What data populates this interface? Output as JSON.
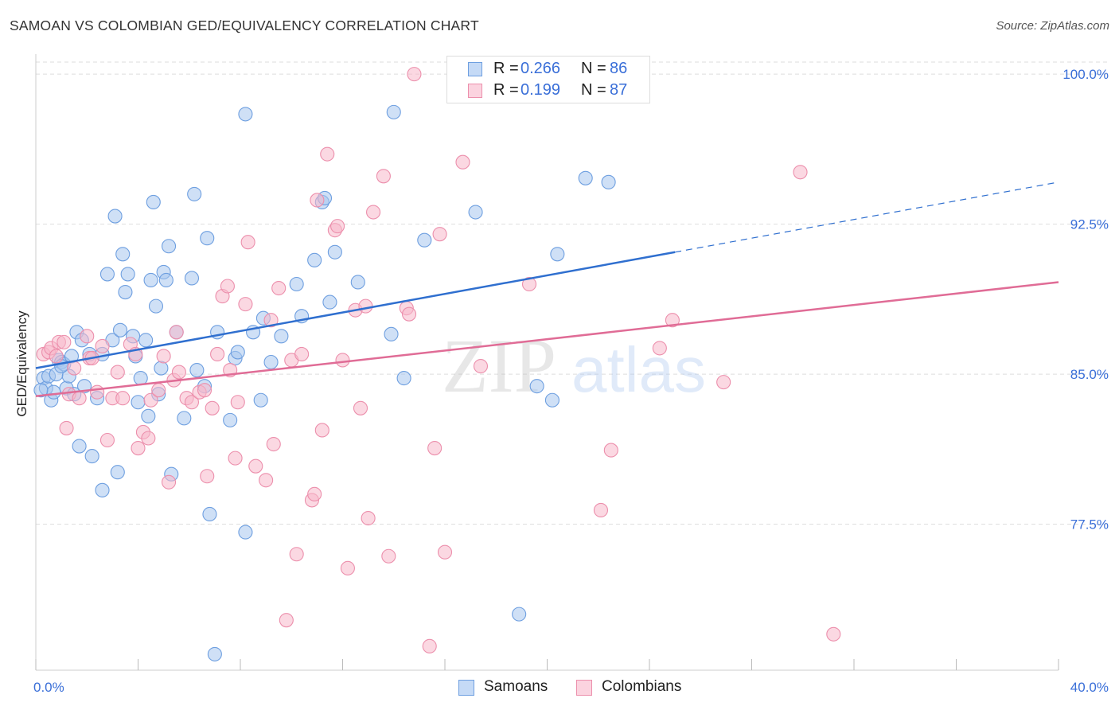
{
  "title": "SAMOAN VS COLOMBIAN GED/EQUIVALENCY CORRELATION CHART",
  "source": "Source: ZipAtlas.com",
  "watermark": {
    "zip": "ZIP",
    "atlas": "atlas"
  },
  "legend": {
    "samoans": {
      "r_label": "R =",
      "r_value": "0.266",
      "n_label": "N =",
      "n_value": "86"
    },
    "colombians": {
      "r_label": "R =",
      "r_value": "0.199",
      "n_label": "N =",
      "n_value": "87"
    }
  },
  "bottom_legend": {
    "samoans": "Samoans",
    "colombians": "Colombians"
  },
  "colors": {
    "samoans_fill": "#a8c6ef",
    "samoans_stroke": "#6e9fe0",
    "samoans_line": "#2f6fcf",
    "colombians_fill": "#f7b8cb",
    "colombians_stroke": "#ec8fac",
    "colombians_line": "#e06c96",
    "tick_label": "#3a6fd8",
    "grid": "#dddddd"
  },
  "chart_data": {
    "type": "scatter",
    "title": "SAMOAN VS COLOMBIAN GED/EQUIVALENCY CORRELATION CHART",
    "xlabel": "",
    "ylabel": "GED/Equivalency",
    "xlim": [
      0,
      40
    ],
    "ylim": [
      70.2,
      101.0
    ],
    "x_tick_labels": [
      {
        "value": 0,
        "label": "0.0%"
      },
      {
        "value": 40,
        "label": "40.0%"
      }
    ],
    "y_tick_labels": [
      {
        "value": 100,
        "label": "100.0%"
      },
      {
        "value": 92.5,
        "label": "92.5%"
      },
      {
        "value": 85,
        "label": "85.0%"
      },
      {
        "value": 77.5,
        "label": "77.5%"
      }
    ],
    "grid": true,
    "series": [
      {
        "name": "Samoans",
        "r": 0.266,
        "n": 86,
        "trend": {
          "x0": 0,
          "y0": 85.3,
          "x1": 25,
          "y1": 91.1,
          "dash_to_x": 40,
          "dash_to_y": 94.6
        },
        "points": [
          [
            0.3,
            84.8
          ],
          [
            0.4,
            84.3
          ],
          [
            0.5,
            84.9
          ],
          [
            0.6,
            83.7
          ],
          [
            0.7,
            84.1
          ],
          [
            0.8,
            85.0
          ],
          [
            0.9,
            85.7
          ],
          [
            1.0,
            85.6
          ],
          [
            1.1,
            85.5
          ],
          [
            1.2,
            84.3
          ],
          [
            1.3,
            84.9
          ],
          [
            1.4,
            85.9
          ],
          [
            1.5,
            84.0
          ],
          [
            1.6,
            87.1
          ],
          [
            1.7,
            81.4
          ],
          [
            1.8,
            86.7
          ],
          [
            1.9,
            84.4
          ],
          [
            2.1,
            86.0
          ],
          [
            2.2,
            80.9
          ],
          [
            2.4,
            83.8
          ],
          [
            2.6,
            79.2
          ],
          [
            2.8,
            90.0
          ],
          [
            3.0,
            86.7
          ],
          [
            3.1,
            92.9
          ],
          [
            3.2,
            80.1
          ],
          [
            3.3,
            87.2
          ],
          [
            3.4,
            91.0
          ],
          [
            3.5,
            89.1
          ],
          [
            3.6,
            90.0
          ],
          [
            3.8,
            86.9
          ],
          [
            3.9,
            85.9
          ],
          [
            4.0,
            83.6
          ],
          [
            4.1,
            84.8
          ],
          [
            4.3,
            86.7
          ],
          [
            4.4,
            82.9
          ],
          [
            4.5,
            89.7
          ],
          [
            4.6,
            93.6
          ],
          [
            4.7,
            88.4
          ],
          [
            4.9,
            85.3
          ],
          [
            5.0,
            90.1
          ],
          [
            5.1,
            89.7
          ],
          [
            5.2,
            91.4
          ],
          [
            5.3,
            80.0
          ],
          [
            5.5,
            87.1
          ],
          [
            5.8,
            82.8
          ],
          [
            6.1,
            89.8
          ],
          [
            6.2,
            94.0
          ],
          [
            6.3,
            85.2
          ],
          [
            6.6,
            84.4
          ],
          [
            6.7,
            91.8
          ],
          [
            6.8,
            78.0
          ],
          [
            7.0,
            71.0
          ],
          [
            7.1,
            87.1
          ],
          [
            7.6,
            82.7
          ],
          [
            7.8,
            85.8
          ],
          [
            7.9,
            86.1
          ],
          [
            8.2,
            77.1
          ],
          [
            8.5,
            87.1
          ],
          [
            8.2,
            98.0
          ],
          [
            8.8,
            83.7
          ],
          [
            8.9,
            87.8
          ],
          [
            9.2,
            85.6
          ],
          [
            9.6,
            86.9
          ],
          [
            10.2,
            89.5
          ],
          [
            10.4,
            87.9
          ],
          [
            10.9,
            90.7
          ],
          [
            11.2,
            93.6
          ],
          [
            11.3,
            93.8
          ],
          [
            11.5,
            88.6
          ],
          [
            11.7,
            91.1
          ],
          [
            12.6,
            89.6
          ],
          [
            13.9,
            87.0
          ],
          [
            14.0,
            98.1
          ],
          [
            14.4,
            84.8
          ],
          [
            15.2,
            91.7
          ],
          [
            17.2,
            93.1
          ],
          [
            18.9,
            73.0
          ],
          [
            19.6,
            84.4
          ],
          [
            20.2,
            83.7
          ],
          [
            20.4,
            91.0
          ],
          [
            21.5,
            94.8
          ],
          [
            22.4,
            94.6
          ],
          [
            0.2,
            84.2
          ],
          [
            1.0,
            85.4
          ],
          [
            2.6,
            86.0
          ],
          [
            4.8,
            84.0
          ]
        ]
      },
      {
        "name": "Colombians",
        "r": 0.199,
        "n": 87,
        "trend": {
          "x0": 0,
          "y0": 83.9,
          "x1": 40,
          "y1": 89.6
        },
        "points": [
          [
            0.3,
            86.0
          ],
          [
            0.5,
            86.1
          ],
          [
            0.6,
            86.3
          ],
          [
            0.8,
            85.9
          ],
          [
            0.9,
            86.6
          ],
          [
            1.1,
            86.6
          ],
          [
            1.2,
            82.3
          ],
          [
            1.3,
            84.0
          ],
          [
            1.5,
            85.3
          ],
          [
            1.7,
            83.8
          ],
          [
            2.0,
            86.9
          ],
          [
            2.1,
            85.8
          ],
          [
            2.2,
            85.8
          ],
          [
            2.4,
            84.1
          ],
          [
            2.6,
            86.4
          ],
          [
            2.8,
            81.7
          ],
          [
            3.0,
            83.8
          ],
          [
            3.2,
            85.1
          ],
          [
            3.4,
            83.8
          ],
          [
            3.7,
            86.5
          ],
          [
            3.9,
            86.0
          ],
          [
            4.0,
            81.3
          ],
          [
            4.2,
            82.1
          ],
          [
            4.4,
            81.8
          ],
          [
            4.5,
            83.7
          ],
          [
            4.8,
            84.2
          ],
          [
            5.0,
            85.9
          ],
          [
            5.2,
            79.6
          ],
          [
            5.4,
            84.7
          ],
          [
            5.5,
            87.1
          ],
          [
            5.6,
            85.1
          ],
          [
            5.9,
            83.8
          ],
          [
            6.1,
            83.6
          ],
          [
            6.4,
            84.1
          ],
          [
            6.6,
            84.2
          ],
          [
            6.7,
            79.9
          ],
          [
            6.9,
            83.3
          ],
          [
            7.1,
            86.0
          ],
          [
            7.3,
            88.9
          ],
          [
            7.5,
            89.4
          ],
          [
            7.6,
            85.2
          ],
          [
            7.8,
            80.8
          ],
          [
            7.9,
            83.6
          ],
          [
            8.2,
            88.5
          ],
          [
            8.3,
            91.6
          ],
          [
            8.6,
            80.4
          ],
          [
            9.0,
            79.7
          ],
          [
            9.2,
            87.7
          ],
          [
            9.3,
            81.5
          ],
          [
            9.5,
            89.3
          ],
          [
            9.8,
            72.7
          ],
          [
            10.0,
            85.7
          ],
          [
            10.2,
            76.0
          ],
          [
            10.4,
            86.0
          ],
          [
            10.8,
            78.7
          ],
          [
            10.9,
            79.0
          ],
          [
            11.0,
            93.7
          ],
          [
            11.2,
            82.2
          ],
          [
            11.4,
            96.0
          ],
          [
            11.7,
            92.2
          ],
          [
            11.8,
            92.4
          ],
          [
            12.0,
            85.7
          ],
          [
            12.2,
            75.3
          ],
          [
            12.5,
            88.2
          ],
          [
            12.7,
            83.3
          ],
          [
            12.9,
            88.4
          ],
          [
            13.0,
            77.8
          ],
          [
            13.2,
            93.1
          ],
          [
            13.6,
            94.9
          ],
          [
            13.8,
            75.9
          ],
          [
            14.5,
            88.3
          ],
          [
            14.6,
            88.0
          ],
          [
            14.8,
            100.0
          ],
          [
            15.4,
            71.4
          ],
          [
            15.6,
            81.3
          ],
          [
            15.8,
            92.0
          ],
          [
            16.0,
            76.1
          ],
          [
            16.7,
            95.6
          ],
          [
            17.4,
            85.4
          ],
          [
            19.3,
            89.5
          ],
          [
            22.1,
            78.2
          ],
          [
            22.5,
            81.2
          ],
          [
            24.4,
            86.3
          ],
          [
            24.9,
            87.7
          ],
          [
            26.9,
            84.6
          ],
          [
            29.9,
            95.1
          ],
          [
            31.2,
            72.0
          ]
        ]
      }
    ]
  }
}
